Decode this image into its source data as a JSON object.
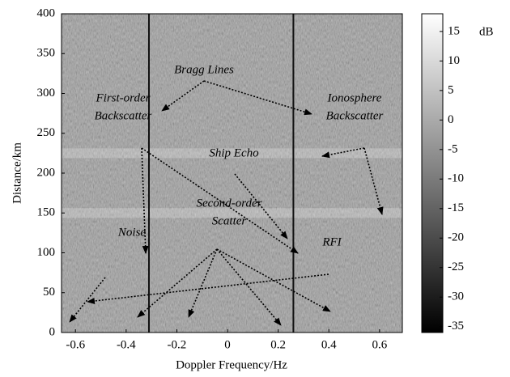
{
  "chart_data": {
    "type": "heatmap",
    "xlabel": "Doppler Frequency/Hz",
    "ylabel": "Distance/km",
    "xlim": [
      -0.655,
      0.69
    ],
    "xticks": [
      -0.6,
      -0.4,
      -0.2,
      0,
      0.2,
      0.4,
      0.6
    ],
    "ylim": [
      0,
      400
    ],
    "yticks": [
      0,
      50,
      100,
      150,
      200,
      250,
      300,
      350,
      400
    ],
    "vlines": [
      -0.31,
      0.26
    ],
    "hbands": [
      150,
      225
    ],
    "colormap": "gray",
    "colorbar": {
      "label": "dB",
      "clim": [
        -36,
        18
      ],
      "ticks": [
        15,
        10,
        5,
        0,
        -5,
        -10,
        -15,
        -20,
        -25,
        -30,
        -35
      ]
    },
    "annotations": [
      [
        "Bragg Lines"
      ],
      [
        "First-order",
        "Backscatter"
      ],
      [
        "Ionosphere",
        "Backscatter"
      ],
      [
        "Ship Echo"
      ],
      [
        "Second-order",
        "Scatter"
      ],
      [
        "Noise"
      ],
      [
        "RFI"
      ]
    ]
  }
}
